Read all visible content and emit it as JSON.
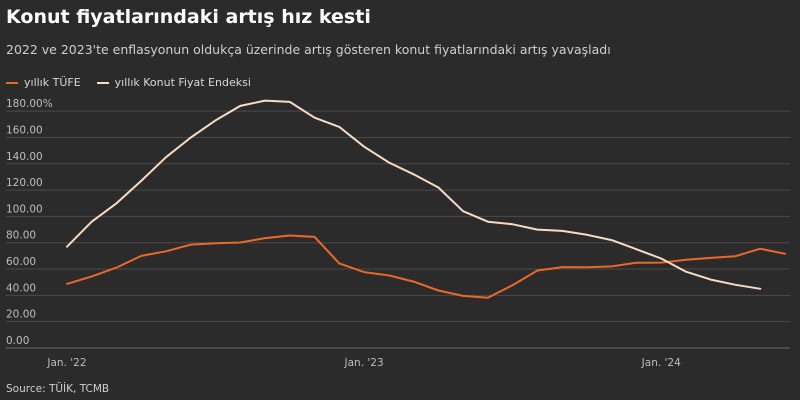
{
  "header": {
    "title": "Konut fiyatlarındaki artış hız kesti",
    "subtitle": "2022 ve 2023'te enflasyonun oldukça üzerinde artış gösteren konut fiyatlarındaki artış yavaşladı"
  },
  "source": "Source: TÜİK, TCMB",
  "colors": {
    "background": "#2b2b2b",
    "grid": "#4a4a4a",
    "tufe": "#e8692a",
    "konut": "#f7dcc4"
  },
  "chart_data": {
    "type": "line",
    "ylim": [
      0,
      190
    ],
    "y_ticks": [
      0,
      20,
      40,
      60,
      80,
      100,
      120,
      140,
      160,
      180
    ],
    "y_tick_labels": [
      "0.00",
      "20.00",
      "40.00",
      "60.00",
      "80.00",
      "100.00",
      "120.00",
      "140.00",
      "160.00",
      "180.00%"
    ],
    "x_ticks": [
      {
        "at": 1,
        "label": "Jan. '22"
      },
      {
        "at": 13,
        "label": "Jan. '23"
      },
      {
        "at": 25,
        "label": "Jan. '24"
      }
    ],
    "grid": true,
    "legend_position": "top-left",
    "series": [
      {
        "name": "yıllık TÜFE",
        "color": "#e8692a",
        "x": [
          1,
          2,
          3,
          4,
          5,
          6,
          7,
          8,
          9,
          10,
          11,
          12,
          13,
          14,
          15,
          16,
          17,
          18,
          19,
          20,
          21,
          22,
          23,
          24,
          25,
          26,
          27,
          28,
          29,
          30
        ],
        "values": [
          48.7,
          54.4,
          61.1,
          70.0,
          73.5,
          78.6,
          79.6,
          80.2,
          83.5,
          85.5,
          84.4,
          64.3,
          57.7,
          55.2,
          50.5,
          43.7,
          39.6,
          38.2,
          47.8,
          58.9,
          61.5,
          61.4,
          62.0,
          64.8,
          64.9,
          67.1,
          68.5,
          69.8,
          75.5,
          71.6
        ]
      },
      {
        "name": "yıllık Konut Fiyat Endeksi",
        "color": "#f7dcc4",
        "x": [
          1,
          2,
          3,
          4,
          5,
          6,
          7,
          8,
          9,
          10,
          11,
          12,
          13,
          14,
          15,
          16,
          17,
          18,
          19,
          20,
          21,
          22,
          23,
          24,
          25,
          26,
          27,
          28,
          29
        ],
        "values": [
          77.0,
          96.0,
          110.0,
          127.0,
          145.0,
          160.0,
          173.0,
          184.0,
          188.0,
          187.0,
          175.0,
          168.0,
          153.0,
          141.0,
          132.0,
          122.0,
          104.0,
          96.0,
          94.0,
          90.0,
          89.0,
          86.0,
          82.0,
          75.0,
          68.0,
          58.0,
          52.0,
          48.0,
          45.0
        ]
      }
    ]
  }
}
